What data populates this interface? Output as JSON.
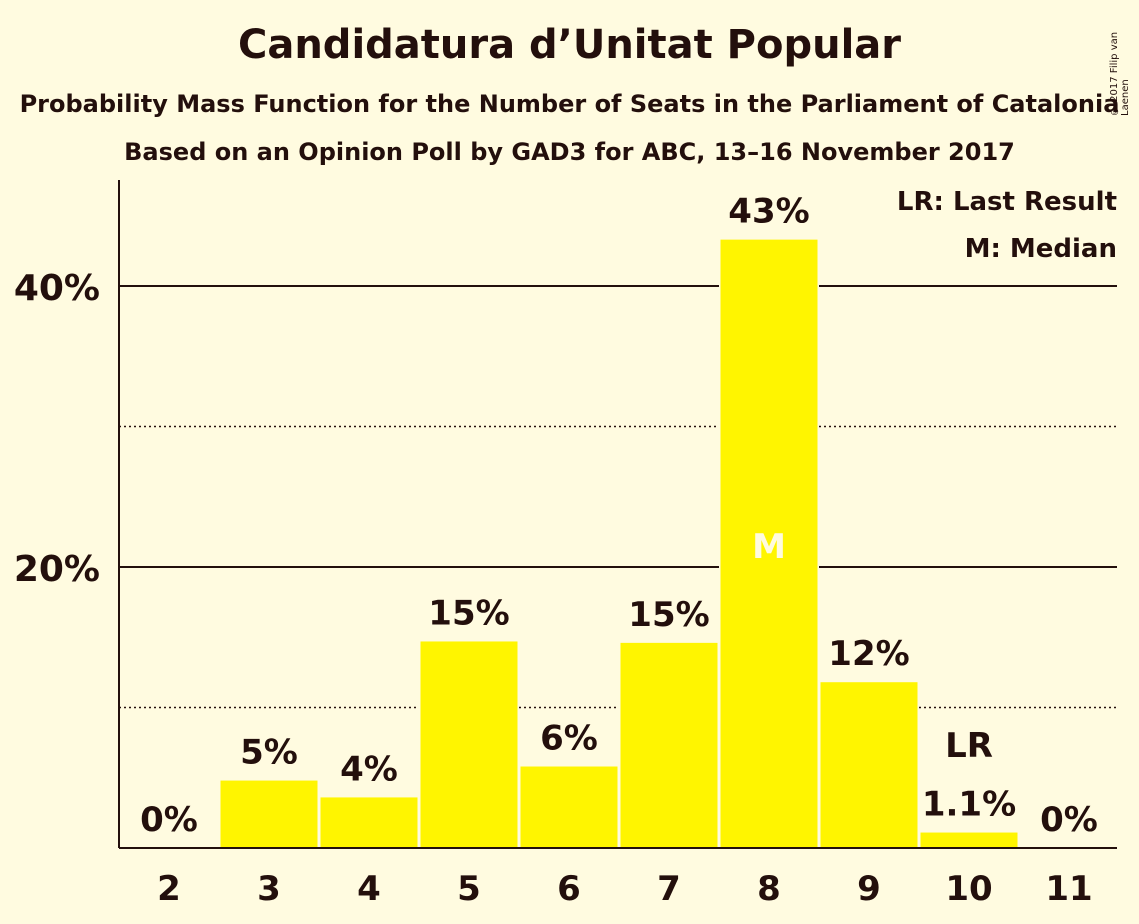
{
  "header": {
    "title": "Candidatura d’Unitat Popular",
    "subtitle": "Probability Mass Function for the Number of Seats in the Parliament of Catalonia",
    "subtitle2": "Based on an Opinion Poll by GAD3 for ABC, 13–16 November 2017",
    "copyright": "© 2017 Filip van Laenen"
  },
  "legend": {
    "last_result": "LR: Last Result",
    "median": "M: Median"
  },
  "colors": {
    "background": "#fffbe0",
    "bar": "#fff500",
    "text": "#230f0c"
  },
  "chart_data": {
    "type": "bar",
    "title": "Candidatura d’Unitat Popular",
    "categories": [
      "2",
      "3",
      "4",
      "5",
      "6",
      "7",
      "8",
      "9",
      "10",
      "11"
    ],
    "values": [
      0,
      4.8,
      3.6,
      14.7,
      5.8,
      14.6,
      43.3,
      11.8,
      1.1,
      0
    ],
    "value_labels": [
      "0%",
      "5%",
      "4%",
      "15%",
      "6%",
      "15%",
      "43%",
      "12%",
      "1.1%",
      "0%"
    ],
    "ylim": [
      0,
      47
    ],
    "y_ticks": [
      20,
      40
    ],
    "y_tick_labels": [
      "20%",
      "40%"
    ],
    "minor_gridlines": [
      10,
      30
    ],
    "median_category": "8",
    "median_marker": "M",
    "last_result_category": "10",
    "last_result_marker": "LR",
    "legend_position": "top-right"
  }
}
